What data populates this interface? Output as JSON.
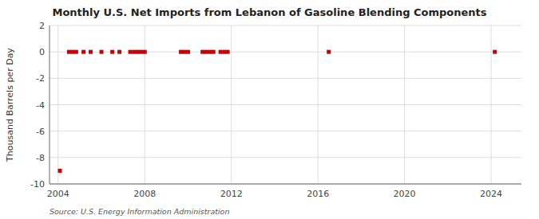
{
  "chart_data": {
    "type": "scatter",
    "title": "Monthly U.S. Net Imports from Lebanon of Gasoline Blending Components",
    "y_label": "Thousand Barrels per Day",
    "annotations": [
      "Source: U.S. Energy Information Administration"
    ],
    "x": [
      2004.08,
      2004.5,
      2004.67,
      2004.83,
      2005.17,
      2005.5,
      2006.0,
      2006.5,
      2006.83,
      2007.33,
      2007.5,
      2007.67,
      2007.83,
      2008.0,
      2009.67,
      2009.83,
      2010.0,
      2010.67,
      2010.83,
      2011.0,
      2011.17,
      2011.5,
      2011.67,
      2011.83,
      2016.5,
      2024.17
    ],
    "values": [
      -9.0,
      0.0,
      0.0,
      0.0,
      0.0,
      0.0,
      0.0,
      0.0,
      0.0,
      0.0,
      0.0,
      0.0,
      0.0,
      0.0,
      0.0,
      0.0,
      0.0,
      0.0,
      0.0,
      0.0,
      0.0,
      0.0,
      0.0,
      0.0,
      0.0,
      0.0
    ],
    "color": "#cc0000",
    "marker": "square",
    "xlim": [
      2003.6,
      2025.4
    ],
    "xticks": [
      2004,
      2008,
      2012,
      2016,
      2020,
      2024
    ],
    "ylim": [
      -10,
      2
    ],
    "yticks": [
      2,
      0,
      -2,
      -4,
      -6,
      -8,
      -10
    ],
    "grid": true
  }
}
